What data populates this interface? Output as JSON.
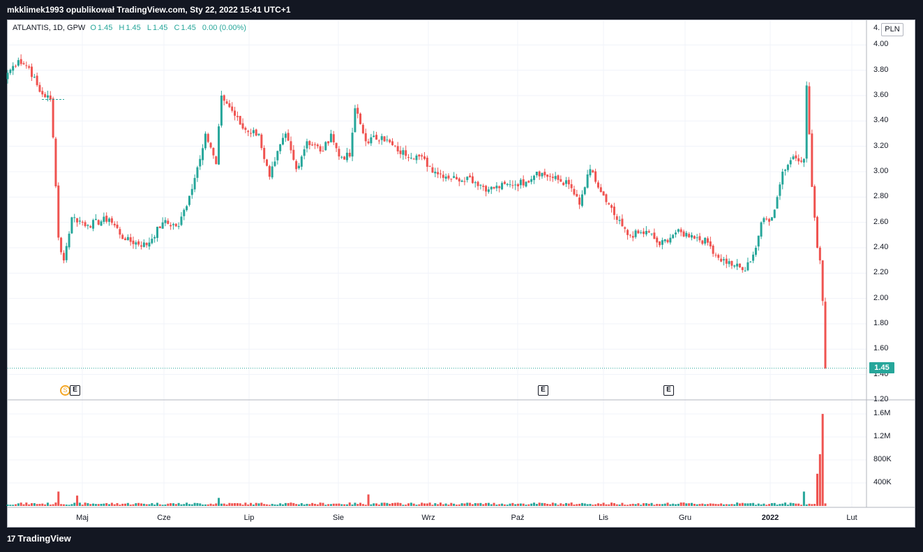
{
  "header": {
    "byline": "mkklimek1993 opublikował TradingView.com, Sty 22, 2022 15:41 UTC+1"
  },
  "legend": {
    "symbol": "ATLANTIS, 1D, GPW",
    "o_label": "O",
    "o": "1.45",
    "h_label": "H",
    "h": "1.45",
    "l_label": "L",
    "l": "1.45",
    "c_label": "C",
    "c": "1.45",
    "change": "0.00 (0.00%)"
  },
  "currency": "PLN",
  "last_price": "1.45",
  "price_axis_top_label": "4.",
  "event_marker_label": "E",
  "dividend_marker_label": "S",
  "brand": {
    "logo": "17",
    "name": "TradingView"
  },
  "colors": {
    "up": "#26a69a",
    "down": "#ef5350",
    "background": "#131722"
  },
  "chart_data": {
    "type": "candlestick",
    "symbol": "ATLANTIS",
    "interval": "1D",
    "exchange": "GPW",
    "currency": "PLN",
    "price_ticks": [
      "4.00",
      "3.80",
      "3.60",
      "3.40",
      "3.20",
      "3.00",
      "2.80",
      "2.60",
      "2.40",
      "2.20",
      "2.00",
      "1.80",
      "1.60",
      "1.40",
      "1.20"
    ],
    "volume_ticks": [
      "1.6M",
      "1.2M",
      "800K",
      "400K"
    ],
    "x_ticks": [
      "Maj",
      "Cze",
      "Lip",
      "Sie",
      "Wrz",
      "Paź",
      "Lis",
      "Gru",
      "2022",
      "Lut"
    ],
    "price_range": [
      1.2,
      4.2
    ],
    "volume_range": [
      0,
      1650000
    ],
    "last_price": 1.45,
    "events": [
      "E",
      "E",
      "E"
    ],
    "anchors_close": [
      [
        0,
        3.78
      ],
      [
        4,
        3.88
      ],
      [
        8,
        3.82
      ],
      [
        12,
        3.63
      ],
      [
        16,
        3.57
      ],
      [
        17,
        3.27
      ],
      [
        19,
        2.48
      ],
      [
        21,
        2.3
      ],
      [
        24,
        2.64
      ],
      [
        30,
        2.58
      ],
      [
        38,
        2.63
      ],
      [
        44,
        2.46
      ],
      [
        52,
        2.42
      ],
      [
        58,
        2.6
      ],
      [
        64,
        2.57
      ],
      [
        68,
        2.81
      ],
      [
        70,
        2.95
      ],
      [
        74,
        3.3
      ],
      [
        78,
        3.06
      ],
      [
        80,
        3.6
      ],
      [
        84,
        3.48
      ],
      [
        88,
        3.34
      ],
      [
        94,
        3.3
      ],
      [
        96,
        3.1
      ],
      [
        98,
        2.96
      ],
      [
        100,
        3.08
      ],
      [
        104,
        3.3
      ],
      [
        108,
        3.02
      ],
      [
        112,
        3.24
      ],
      [
        118,
        3.16
      ],
      [
        121,
        3.3
      ],
      [
        124,
        3.12
      ],
      [
        128,
        3.12
      ],
      [
        130,
        3.5
      ],
      [
        134,
        3.24
      ],
      [
        140,
        3.28
      ],
      [
        146,
        3.16
      ],
      [
        154,
        3.12
      ],
      [
        160,
        3.0
      ],
      [
        168,
        2.94
      ],
      [
        172,
        2.96
      ],
      [
        180,
        2.86
      ],
      [
        188,
        2.9
      ],
      [
        194,
        2.92
      ],
      [
        198,
        3.0
      ],
      [
        204,
        2.95
      ],
      [
        210,
        2.9
      ],
      [
        214,
        2.74
      ],
      [
        218,
        3.02
      ],
      [
        220,
        2.92
      ],
      [
        224,
        2.76
      ],
      [
        228,
        2.62
      ],
      [
        232,
        2.5
      ],
      [
        240,
        2.52
      ],
      [
        244,
        2.42
      ],
      [
        250,
        2.52
      ],
      [
        256,
        2.5
      ],
      [
        262,
        2.44
      ],
      [
        266,
        2.32
      ],
      [
        272,
        2.26
      ],
      [
        276,
        2.22
      ],
      [
        280,
        2.4
      ],
      [
        282,
        2.6
      ],
      [
        286,
        2.64
      ],
      [
        288,
        2.8
      ],
      [
        290,
        3.0
      ],
      [
        294,
        3.12
      ],
      [
        298,
        3.1
      ],
      [
        299,
        3.68
      ],
      [
        301,
        2.88
      ],
      [
        303,
        2.4
      ],
      [
        304,
        2.3
      ],
      [
        305,
        1.98
      ],
      [
        306,
        1.45
      ]
    ],
    "volume_spikes": [
      [
        19,
        250000
      ],
      [
        26,
        180000
      ],
      [
        79,
        140000
      ],
      [
        135,
        200000
      ],
      [
        298,
        250000
      ],
      [
        303,
        560000
      ],
      [
        304,
        900000
      ],
      [
        305,
        1600000
      ]
    ]
  }
}
